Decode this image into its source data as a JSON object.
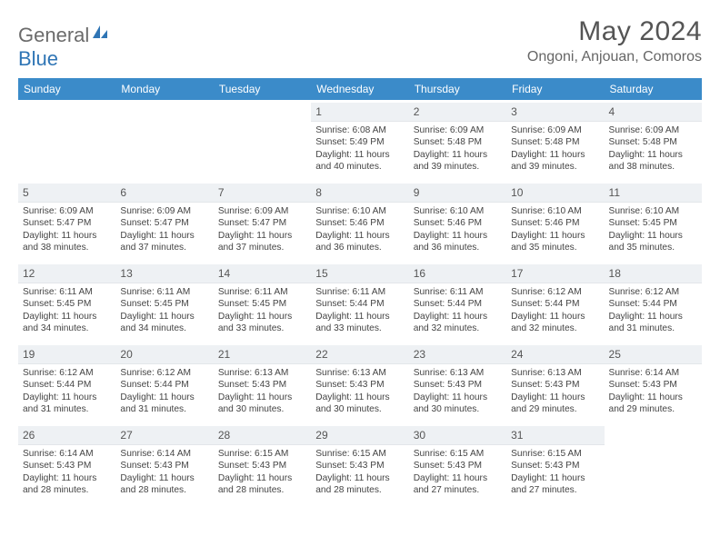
{
  "brand": {
    "name1": "General",
    "name2": "Blue"
  },
  "title": "May 2024",
  "location": "Ongoni, Anjouan, Comoros",
  "colors": {
    "header_bg": "#3b8bc9",
    "header_text": "#ffffff",
    "daynum_bg": "#eef1f4",
    "text": "#444444",
    "title": "#555555",
    "brand_gray": "#6b6b6b",
    "brand_blue": "#2f75b5",
    "page_bg": "#ffffff"
  },
  "day_headers": [
    "Sunday",
    "Monday",
    "Tuesday",
    "Wednesday",
    "Thursday",
    "Friday",
    "Saturday"
  ],
  "weeks": [
    [
      {
        "n": "",
        "sr": "",
        "ss": "",
        "d": ""
      },
      {
        "n": "",
        "sr": "",
        "ss": "",
        "d": ""
      },
      {
        "n": "",
        "sr": "",
        "ss": "",
        "d": ""
      },
      {
        "n": "1",
        "sr": "6:08 AM",
        "ss": "5:49 PM",
        "d": "11 hours and 40 minutes."
      },
      {
        "n": "2",
        "sr": "6:09 AM",
        "ss": "5:48 PM",
        "d": "11 hours and 39 minutes."
      },
      {
        "n": "3",
        "sr": "6:09 AM",
        "ss": "5:48 PM",
        "d": "11 hours and 39 minutes."
      },
      {
        "n": "4",
        "sr": "6:09 AM",
        "ss": "5:48 PM",
        "d": "11 hours and 38 minutes."
      }
    ],
    [
      {
        "n": "5",
        "sr": "6:09 AM",
        "ss": "5:47 PM",
        "d": "11 hours and 38 minutes."
      },
      {
        "n": "6",
        "sr": "6:09 AM",
        "ss": "5:47 PM",
        "d": "11 hours and 37 minutes."
      },
      {
        "n": "7",
        "sr": "6:09 AM",
        "ss": "5:47 PM",
        "d": "11 hours and 37 minutes."
      },
      {
        "n": "8",
        "sr": "6:10 AM",
        "ss": "5:46 PM",
        "d": "11 hours and 36 minutes."
      },
      {
        "n": "9",
        "sr": "6:10 AM",
        "ss": "5:46 PM",
        "d": "11 hours and 36 minutes."
      },
      {
        "n": "10",
        "sr": "6:10 AM",
        "ss": "5:46 PM",
        "d": "11 hours and 35 minutes."
      },
      {
        "n": "11",
        "sr": "6:10 AM",
        "ss": "5:45 PM",
        "d": "11 hours and 35 minutes."
      }
    ],
    [
      {
        "n": "12",
        "sr": "6:11 AM",
        "ss": "5:45 PM",
        "d": "11 hours and 34 minutes."
      },
      {
        "n": "13",
        "sr": "6:11 AM",
        "ss": "5:45 PM",
        "d": "11 hours and 34 minutes."
      },
      {
        "n": "14",
        "sr": "6:11 AM",
        "ss": "5:45 PM",
        "d": "11 hours and 33 minutes."
      },
      {
        "n": "15",
        "sr": "6:11 AM",
        "ss": "5:44 PM",
        "d": "11 hours and 33 minutes."
      },
      {
        "n": "16",
        "sr": "6:11 AM",
        "ss": "5:44 PM",
        "d": "11 hours and 32 minutes."
      },
      {
        "n": "17",
        "sr": "6:12 AM",
        "ss": "5:44 PM",
        "d": "11 hours and 32 minutes."
      },
      {
        "n": "18",
        "sr": "6:12 AM",
        "ss": "5:44 PM",
        "d": "11 hours and 31 minutes."
      }
    ],
    [
      {
        "n": "19",
        "sr": "6:12 AM",
        "ss": "5:44 PM",
        "d": "11 hours and 31 minutes."
      },
      {
        "n": "20",
        "sr": "6:12 AM",
        "ss": "5:44 PM",
        "d": "11 hours and 31 minutes."
      },
      {
        "n": "21",
        "sr": "6:13 AM",
        "ss": "5:43 PM",
        "d": "11 hours and 30 minutes."
      },
      {
        "n": "22",
        "sr": "6:13 AM",
        "ss": "5:43 PM",
        "d": "11 hours and 30 minutes."
      },
      {
        "n": "23",
        "sr": "6:13 AM",
        "ss": "5:43 PM",
        "d": "11 hours and 30 minutes."
      },
      {
        "n": "24",
        "sr": "6:13 AM",
        "ss": "5:43 PM",
        "d": "11 hours and 29 minutes."
      },
      {
        "n": "25",
        "sr": "6:14 AM",
        "ss": "5:43 PM",
        "d": "11 hours and 29 minutes."
      }
    ],
    [
      {
        "n": "26",
        "sr": "6:14 AM",
        "ss": "5:43 PM",
        "d": "11 hours and 28 minutes."
      },
      {
        "n": "27",
        "sr": "6:14 AM",
        "ss": "5:43 PM",
        "d": "11 hours and 28 minutes."
      },
      {
        "n": "28",
        "sr": "6:15 AM",
        "ss": "5:43 PM",
        "d": "11 hours and 28 minutes."
      },
      {
        "n": "29",
        "sr": "6:15 AM",
        "ss": "5:43 PM",
        "d": "11 hours and 28 minutes."
      },
      {
        "n": "30",
        "sr": "6:15 AM",
        "ss": "5:43 PM",
        "d": "11 hours and 27 minutes."
      },
      {
        "n": "31",
        "sr": "6:15 AM",
        "ss": "5:43 PM",
        "d": "11 hours and 27 minutes."
      },
      {
        "n": "",
        "sr": "",
        "ss": "",
        "d": ""
      }
    ]
  ],
  "labels": {
    "sunrise": "Sunrise:",
    "sunset": "Sunset:",
    "daylight": "Daylight:"
  }
}
